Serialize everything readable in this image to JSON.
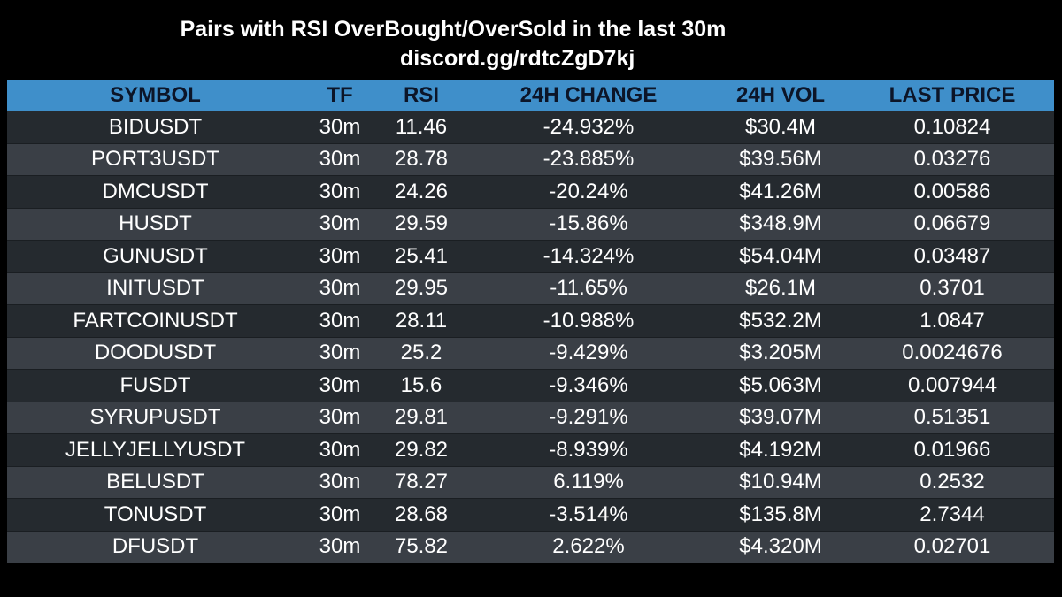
{
  "title": "Pairs with RSI OverBought/OverSold in the last 30m",
  "subtitle": "discord.gg/rdtcZgD7kj",
  "colors": {
    "background": "#000000",
    "header_bg": "#3f8fca",
    "header_text": "#0c1528",
    "row_dark": "#252a2f",
    "row_light": "#3a3f46",
    "cell_text": "#ffffff"
  },
  "table": {
    "columns": [
      "SYMBOL",
      "TF",
      "RSI",
      "24H CHANGE",
      "24H VOL",
      "LAST PRICE"
    ],
    "rows": [
      [
        "BIDUSDT",
        "30m",
        "11.46",
        "-24.932%",
        "$30.4M",
        "0.10824"
      ],
      [
        "PORT3USDT",
        "30m",
        "28.78",
        "-23.885%",
        "$39.56M",
        "0.03276"
      ],
      [
        "DMCUSDT",
        "30m",
        "24.26",
        "-20.24%",
        "$41.26M",
        "0.00586"
      ],
      [
        "HUSDT",
        "30m",
        "29.59",
        "-15.86%",
        "$348.9M",
        "0.06679"
      ],
      [
        "GUNUSDT",
        "30m",
        "25.41",
        "-14.324%",
        "$54.04M",
        "0.03487"
      ],
      [
        "INITUSDT",
        "30m",
        "29.95",
        "-11.65%",
        "$26.1M",
        "0.3701"
      ],
      [
        "FARTCOINUSDT",
        "30m",
        "28.11",
        "-10.988%",
        "$532.2M",
        "1.0847"
      ],
      [
        "DOODUSDT",
        "30m",
        "25.2",
        "-9.429%",
        "$3.205M",
        "0.0024676"
      ],
      [
        "FUSDT",
        "30m",
        "15.6",
        "-9.346%",
        "$5.063M",
        "0.007944"
      ],
      [
        "SYRUPUSDT",
        "30m",
        "29.81",
        "-9.291%",
        "$39.07M",
        "0.51351"
      ],
      [
        "JELLYJELLYUSDT",
        "30m",
        "29.82",
        "-8.939%",
        "$4.192M",
        "0.01966"
      ],
      [
        "BELUSDT",
        "30m",
        "78.27",
        "6.119%",
        "$10.94M",
        "0.2532"
      ],
      [
        "TONUSDT",
        "30m",
        "28.68",
        "-3.514%",
        "$135.8M",
        "2.7344"
      ],
      [
        "DFUSDT",
        "30m",
        "75.82",
        "2.622%",
        "$4.320M",
        "0.02701"
      ]
    ]
  }
}
